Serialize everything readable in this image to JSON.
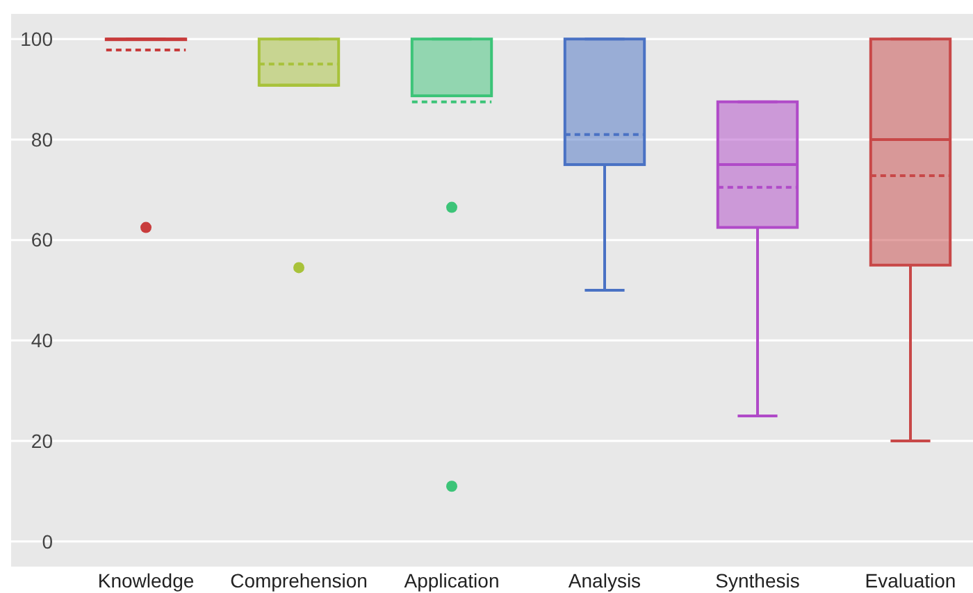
{
  "chart_data": {
    "type": "box",
    "categories": [
      "Knowledge",
      "Comprehension",
      "Application",
      "Analysis",
      "Synthesis",
      "Evaluation"
    ],
    "colors": [
      "#c83c3c",
      "#a8c23a",
      "#3cc478",
      "#4a72c4",
      "#b04ac8",
      "#c84848"
    ],
    "boxes": [
      {
        "low": 100,
        "q1": 100,
        "median": 100,
        "q3": 100,
        "high": 100,
        "mean": 97.8,
        "outliers": [
          62.5
        ]
      },
      {
        "low": 90.8,
        "q1": 90.8,
        "median": 90.8,
        "q3": 100,
        "high": 100,
        "mean": 95,
        "outliers": [
          54.5
        ]
      },
      {
        "low": 88.7,
        "q1": 88.7,
        "median": 88.7,
        "q3": 100,
        "high": 100,
        "mean": 87.5,
        "outliers": [
          66.5,
          11
        ]
      },
      {
        "low": 50,
        "q1": 75,
        "median": 75,
        "q3": 100,
        "high": 100,
        "mean": 81
      },
      {
        "low": 25,
        "q1": 62.5,
        "median": 75,
        "q3": 87.5,
        "high": 87.5,
        "mean": 70.5
      },
      {
        "low": 20,
        "q1": 55,
        "median": 80,
        "q3": 100,
        "high": 100,
        "mean": 72.8
      }
    ],
    "ylim": [
      -5,
      105
    ],
    "yticks": [
      0,
      20,
      40,
      60,
      80,
      100
    ],
    "grid": "y"
  }
}
